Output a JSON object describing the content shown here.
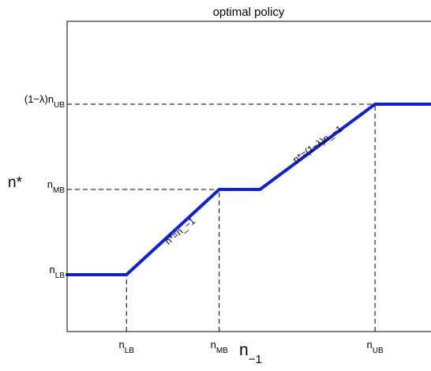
{
  "chart_data": {
    "type": "line",
    "title": "optimal policy",
    "xlabel": {
      "main": "n",
      "sub": "−1"
    },
    "ylabel": "n*",
    "xlim": [
      0,
      10
    ],
    "ylim": [
      0,
      10
    ],
    "grid": false,
    "legend": "none",
    "x_ticks": [
      {
        "id": "x-tick-lb",
        "value": 1.6,
        "main": "n",
        "sub": "LB"
      },
      {
        "id": "x-tick-mb",
        "value": 4.1,
        "main": "n",
        "sub": "MB"
      },
      {
        "id": "x-tick-ub",
        "value": 8.3,
        "main": "n",
        "sub": "UB"
      }
    ],
    "y_ticks": [
      {
        "id": "y-tick-lb",
        "value": 2.0,
        "main": "n",
        "sub": "LB"
      },
      {
        "id": "y-tick-mb",
        "value": 5.0,
        "main": "n",
        "sub": "MB"
      },
      {
        "id": "y-tick-ub",
        "value": 8.0,
        "main": "(1−λ)n",
        "sub": "UB"
      }
    ],
    "guides": [
      {
        "id": "guide-h-lb",
        "from": [
          0,
          2.0
        ],
        "to": [
          1.6,
          2.0
        ]
      },
      {
        "id": "guide-v-lb",
        "from": [
          1.6,
          0
        ],
        "to": [
          1.6,
          2.0
        ]
      },
      {
        "id": "guide-h-mb",
        "from": [
          0,
          5.0
        ],
        "to": [
          4.1,
          5.0
        ]
      },
      {
        "id": "guide-v-mb",
        "from": [
          4.1,
          0
        ],
        "to": [
          4.1,
          5.0
        ]
      },
      {
        "id": "guide-h-ub",
        "from": [
          0,
          8.0
        ],
        "to": [
          8.3,
          8.0
        ]
      },
      {
        "id": "guide-v-ub",
        "from": [
          8.3,
          0
        ],
        "to": [
          8.3,
          8.0
        ]
      }
    ],
    "series": [
      {
        "color": "#0d1fe0",
        "x": [
          0,
          1.6,
          4.1,
          5.2,
          8.3,
          10
        ],
        "y": [
          2.0,
          2.0,
          5.0,
          5.0,
          8.0,
          8.0
        ]
      }
    ],
    "annotations": [
      {
        "id": "annotation-identity",
        "text": "n*=n_−1",
        "x": 3.1,
        "y": 3.45,
        "angle": -40
      },
      {
        "id": "annotation-scaled",
        "text": "n*=(1−λ)n_−1",
        "x": 6.8,
        "y": 6.5,
        "angle": -35
      }
    ]
  }
}
